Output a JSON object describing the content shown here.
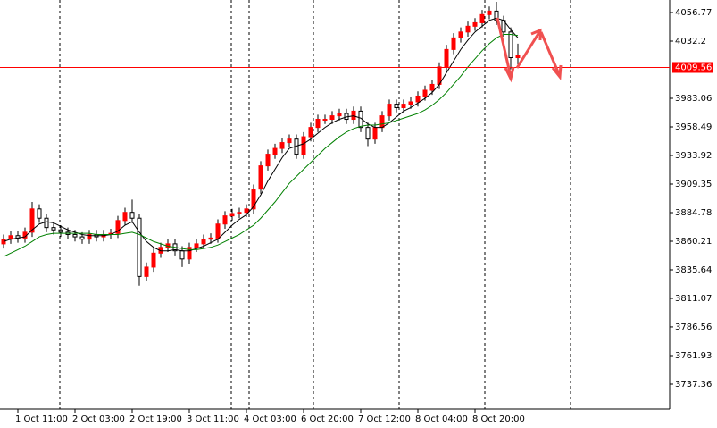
{
  "chart_data": {
    "type": "candlestick",
    "categories": [
      null,
      null,
      "1 Oct 11:00",
      null,
      null,
      null,
      null,
      null,
      null,
      null,
      "2 Oct 03:00",
      null,
      null,
      null,
      null,
      null,
      null,
      null,
      "2 Oct 19:00",
      null,
      null,
      null,
      null,
      null,
      null,
      null,
      "3 Oct 11:00",
      null,
      null,
      null,
      null,
      null,
      null,
      null,
      "4 Oct 03:00",
      null,
      null,
      null,
      null,
      null,
      null,
      null,
      "6 Oct 20:00",
      null,
      null,
      null,
      null,
      null,
      null,
      null,
      "7 Oct 12:00",
      null,
      null,
      null,
      null,
      null,
      null,
      null,
      "8 Oct 04:00",
      null,
      null,
      null,
      null,
      null,
      null,
      null,
      "8 Oct 20:00",
      null,
      null,
      null,
      null,
      null,
      null
    ],
    "open": [
      3858,
      3862,
      3865,
      3863,
      3868,
      3888,
      3880,
      3872,
      3870,
      3868,
      3866,
      3864,
      3862,
      3866,
      3864,
      3866,
      3867,
      3878,
      3885,
      3880,
      3830,
      3838,
      3850,
      3855,
      3858,
      3852,
      3845,
      3855,
      3858,
      3862,
      3863,
      3875,
      3882,
      3884,
      3885,
      3888,
      3905,
      3925,
      3935,
      3940,
      3945,
      3948,
      3935,
      3950,
      3958,
      3965,
      3965,
      3968,
      3970,
      3965,
      3972,
      3958,
      3948,
      3958,
      3968,
      3978,
      3975,
      3978,
      3980,
      3985,
      3990,
      3995,
      4010,
      4025,
      4035,
      4040,
      4045,
      4048,
      4055,
      4058,
      4050,
      4040,
      4018
    ],
    "close": [
      3862,
      3865,
      3863,
      3868,
      3888,
      3880,
      3872,
      3870,
      3868,
      3866,
      3864,
      3862,
      3866,
      3864,
      3866,
      3867,
      3878,
      3885,
      3880,
      3830,
      3838,
      3850,
      3855,
      3858,
      3852,
      3845,
      3855,
      3858,
      3862,
      3863,
      3875,
      3882,
      3884,
      3885,
      3888,
      3905,
      3925,
      3935,
      3940,
      3945,
      3948,
      3935,
      3950,
      3958,
      3965,
      3965,
      3968,
      3970,
      3965,
      3972,
      3958,
      3948,
      3958,
      3968,
      3978,
      3975,
      3978,
      3980,
      3985,
      3990,
      3995,
      4010,
      4025,
      4035,
      4040,
      4045,
      4048,
      4055,
      4058,
      4050,
      4040,
      4018,
      4020
    ],
    "high": [
      3866,
      3869,
      3869,
      3872,
      3894,
      3892,
      3884,
      3876,
      3874,
      3872,
      3870,
      3868,
      3870,
      3870,
      3870,
      3871,
      3882,
      3889,
      3896,
      3884,
      3842,
      3854,
      3859,
      3862,
      3862,
      3856,
      3859,
      3862,
      3866,
      3867,
      3879,
      3886,
      3888,
      3889,
      3892,
      3909,
      3929,
      3939,
      3944,
      3949,
      3952,
      3952,
      3954,
      3962,
      3969,
      3969,
      3972,
      3974,
      3974,
      3976,
      3976,
      3962,
      3962,
      3972,
      3982,
      3982,
      3982,
      3984,
      3989,
      3994,
      3999,
      4014,
      4029,
      4039,
      4044,
      4049,
      4052,
      4059,
      4062,
      4066,
      4054,
      4044,
      4030
    ],
    "low": [
      3854,
      3858,
      3859,
      3859,
      3864,
      3876,
      3868,
      3866,
      3864,
      3862,
      3860,
      3858,
      3858,
      3860,
      3860,
      3862,
      3863,
      3874,
      3876,
      3822,
      3826,
      3834,
      3846,
      3851,
      3848,
      3838,
      3841,
      3851,
      3854,
      3858,
      3859,
      3871,
      3878,
      3880,
      3881,
      3884,
      3901,
      3921,
      3931,
      3936,
      3941,
      3931,
      3931,
      3946,
      3954,
      3961,
      3961,
      3964,
      3961,
      3961,
      3954,
      3942,
      3944,
      3954,
      3964,
      3971,
      3971,
      3974,
      3976,
      3981,
      3986,
      3991,
      4006,
      4021,
      4031,
      4036,
      4041,
      4044,
      4051,
      4046,
      4036,
      4008,
      4012
    ],
    "up_color": "#ff0000",
    "down_color": "#ffffff",
    "outline_color": "#000000",
    "series": [
      {
        "color": "#000000",
        "values": [
          3860,
          3862,
          3863,
          3864,
          3870,
          3875,
          3877,
          3876,
          3873,
          3870,
          3868,
          3866,
          3865,
          3865,
          3865,
          3866,
          3869,
          3874,
          3877,
          3868,
          3860,
          3855,
          3852,
          3852,
          3853,
          3852,
          3852,
          3854,
          3856,
          3859,
          3862,
          3868,
          3874,
          3879,
          3883,
          3890,
          3900,
          3912,
          3922,
          3932,
          3940,
          3942,
          3944,
          3948,
          3953,
          3958,
          3962,
          3965,
          3967,
          3968,
          3966,
          3961,
          3958,
          3958,
          3962,
          3967,
          3972,
          3975,
          3979,
          3983,
          3988,
          3995,
          4005,
          4015,
          4025,
          4033,
          4040,
          4045,
          4050,
          4052,
          4050,
          4042,
          4035
        ]
      },
      {
        "color": "#008000",
        "values": [
          3847,
          3850,
          3853,
          3856,
          3860,
          3864,
          3866,
          3867,
          3867,
          3867,
          3867,
          3867,
          3867,
          3866,
          3866,
          3866,
          3866,
          3867,
          3868,
          3866,
          3863,
          3860,
          3858,
          3856,
          3855,
          3854,
          3853,
          3853,
          3854,
          3855,
          3857,
          3860,
          3863,
          3866,
          3870,
          3874,
          3880,
          3887,
          3894,
          3902,
          3910,
          3916,
          3922,
          3928,
          3934,
          3940,
          3945,
          3950,
          3954,
          3957,
          3959,
          3960,
          3960,
          3961,
          3962,
          3964,
          3966,
          3968,
          3970,
          3973,
          3977,
          3982,
          3988,
          3995,
          4002,
          4010,
          4017,
          4024,
          4030,
          4035,
          4038,
          4038,
          4037
        ]
      }
    ],
    "current_price": 4009.56,
    "current_price_color": "#ff0000",
    "ylim": [
      3715.87,
      4067.52
    ],
    "yticks": [
      3737.36,
      3761.93,
      3786.56,
      3811.07,
      3835.64,
      3860.21,
      3884.78,
      3909.35,
      3933.92,
      3958.49,
      3983.06,
      4032.2,
      4056.77
    ]
  }
}
